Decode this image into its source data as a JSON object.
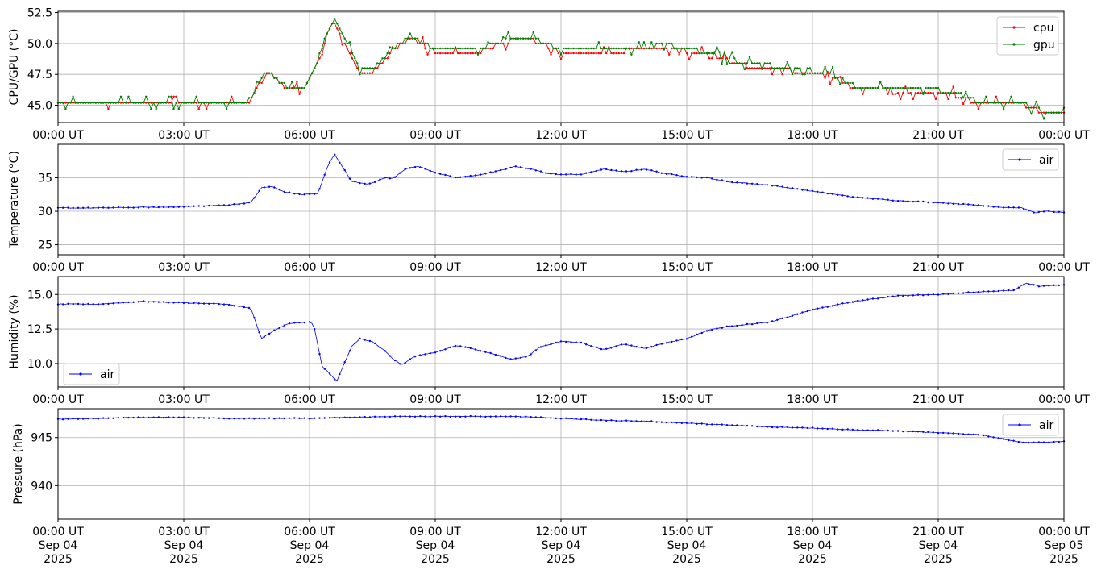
{
  "chart_data": [
    {
      "type": "line",
      "ylabel": "CPU/GPU (°C)",
      "ylim": [
        43.6,
        52.6
      ],
      "yticks": [
        45.0,
        47.5,
        50.0,
        52.5
      ],
      "ytick_labels": [
        "45.0",
        "47.5",
        "50.0",
        "52.5"
      ],
      "xticks": [
        "00:00 UT",
        "03:00 UT",
        "06:00 UT",
        "09:00 UT",
        "12:00 UT",
        "15:00 UT",
        "18:00 UT",
        "21:00 UT",
        "00:00 UT"
      ],
      "grid": true,
      "legend": "top-right",
      "series": [
        {
          "name": "cpu",
          "color": "#ff0000",
          "x_hours": [
            0,
            4.5,
            4.8,
            5.0,
            5.3,
            5.5,
            5.9,
            6.2,
            6.4,
            6.6,
            6.8,
            7.0,
            7.2,
            7.5,
            7.8,
            8.0,
            8.4,
            9.0,
            10.0,
            11.0,
            11.5,
            12.0,
            13.0,
            14.0,
            14.5,
            15.0,
            16.0,
            16.5,
            17.0,
            18.0,
            18.5,
            19.0,
            20.0,
            21.0,
            21.5,
            22.0,
            23.0,
            23.5,
            24.0
          ],
          "values": [
            45.0,
            45.0,
            46.5,
            47.8,
            46.8,
            46.3,
            46.5,
            48.5,
            50.5,
            51.8,
            50.4,
            49.0,
            47.8,
            47.7,
            48.7,
            49.4,
            50.5,
            49.3,
            49.3,
            50.5,
            50.1,
            49.3,
            49.3,
            49.5,
            49.7,
            49.4,
            48.6,
            48.1,
            48.0,
            47.6,
            47.2,
            46.4,
            46.2,
            46.1,
            45.7,
            45.1,
            45.1,
            44.4,
            44.5
          ]
        },
        {
          "name": "gpu",
          "color": "#008000",
          "x_hours": [
            0,
            4.5,
            4.8,
            5.0,
            5.3,
            5.5,
            5.9,
            6.2,
            6.4,
            6.6,
            6.8,
            7.0,
            7.2,
            7.5,
            7.8,
            8.0,
            8.4,
            9.0,
            10.0,
            11.0,
            11.5,
            12.0,
            13.0,
            14.0,
            14.5,
            15.0,
            16.0,
            16.5,
            17.0,
            18.0,
            18.5,
            19.0,
            20.0,
            21.0,
            21.5,
            22.0,
            23.0,
            23.5,
            24.0
          ],
          "values": [
            45.1,
            45.1,
            46.7,
            47.9,
            46.9,
            46.4,
            46.6,
            48.7,
            50.7,
            51.9,
            50.6,
            49.2,
            48.0,
            47.9,
            48.9,
            49.6,
            50.6,
            49.5,
            49.5,
            50.6,
            50.2,
            49.5,
            49.5,
            49.7,
            49.9,
            49.6,
            48.8,
            48.3,
            48.2,
            47.8,
            47.4,
            46.6,
            46.3,
            46.2,
            45.9,
            45.2,
            45.2,
            44.5,
            44.6
          ]
        }
      ]
    },
    {
      "type": "line",
      "ylabel": "Temperature (°C)",
      "ylim": [
        23.5,
        40.0
      ],
      "yticks": [
        25,
        30,
        35
      ],
      "ytick_labels": [
        "25",
        "30",
        "35"
      ],
      "xticks": [
        "00:00 UT",
        "03:00 UT",
        "06:00 UT",
        "09:00 UT",
        "12:00 UT",
        "15:00 UT",
        "18:00 UT",
        "21:00 UT",
        "00:00 UT"
      ],
      "grid": true,
      "legend": "top-right",
      "series": [
        {
          "name": "air",
          "color": "#0000ff",
          "x_hours": [
            0,
            1.0,
            2.0,
            2.5,
            3.0,
            4.0,
            4.6,
            4.85,
            5.1,
            5.4,
            5.8,
            6.2,
            6.45,
            6.6,
            6.8,
            7.0,
            7.4,
            7.8,
            8.0,
            8.3,
            8.6,
            9.0,
            9.5,
            10.0,
            10.5,
            10.9,
            11.3,
            11.7,
            12.0,
            12.5,
            13.0,
            13.5,
            14.0,
            14.5,
            15.0,
            15.5,
            16.0,
            17.0,
            18.0,
            19.0,
            20.0,
            21.0,
            22.0,
            22.5,
            23.0,
            23.3,
            23.6,
            24.0
          ],
          "values": [
            30.5,
            30.5,
            30.6,
            30.6,
            30.7,
            30.9,
            31.3,
            33.5,
            33.7,
            32.9,
            32.5,
            32.6,
            37.0,
            38.5,
            36.5,
            34.5,
            34.0,
            35.0,
            34.9,
            36.4,
            36.7,
            35.8,
            35.0,
            35.4,
            36.0,
            36.7,
            36.3,
            35.6,
            35.5,
            35.5,
            36.3,
            35.9,
            36.3,
            35.6,
            35.2,
            35.0,
            34.4,
            33.9,
            33.0,
            32.1,
            31.6,
            31.3,
            30.9,
            30.6,
            30.5,
            29.8,
            30.0,
            29.8
          ]
        }
      ]
    },
    {
      "type": "line",
      "ylabel": "Humidity (%)",
      "ylim": [
        8.3,
        16.3
      ],
      "yticks": [
        10.0,
        12.5,
        15.0
      ],
      "ytick_labels": [
        "10.0",
        "12.5",
        "15.0"
      ],
      "xticks": [
        "00:00 UT",
        "03:00 UT",
        "06:00 UT",
        "09:00 UT",
        "12:00 UT",
        "15:00 UT",
        "18:00 UT",
        "21:00 UT",
        "00:00 UT"
      ],
      "grid": true,
      "legend": "bottom-left",
      "series": [
        {
          "name": "air",
          "color": "#0000ff",
          "x_hours": [
            0,
            1.0,
            2.0,
            3.0,
            4.0,
            4.6,
            4.85,
            5.1,
            5.5,
            6.0,
            6.1,
            6.3,
            6.5,
            6.65,
            6.8,
            7.0,
            7.2,
            7.5,
            7.8,
            8.0,
            8.2,
            8.5,
            9.0,
            9.5,
            10.0,
            10.5,
            10.8,
            11.2,
            11.5,
            12.0,
            12.5,
            13.0,
            13.5,
            14.0,
            14.5,
            15.0,
            15.5,
            16.0,
            17.0,
            18.0,
            19.0,
            20.0,
            21.0,
            22.0,
            22.8,
            23.1,
            23.4,
            24.0
          ],
          "values": [
            14.3,
            14.3,
            14.5,
            14.4,
            14.3,
            14.0,
            11.8,
            12.3,
            12.9,
            13.0,
            12.8,
            9.8,
            9.2,
            8.7,
            9.8,
            11.2,
            11.8,
            11.6,
            10.9,
            10.3,
            9.9,
            10.5,
            10.8,
            11.3,
            11.0,
            10.6,
            10.3,
            10.5,
            11.2,
            11.6,
            11.5,
            11.0,
            11.4,
            11.1,
            11.5,
            11.8,
            12.4,
            12.7,
            13.0,
            13.9,
            14.5,
            14.9,
            15.0,
            15.2,
            15.3,
            15.8,
            15.6,
            15.7
          ]
        }
      ]
    },
    {
      "type": "line",
      "ylabel": "Pressure (hPa)",
      "ylim": [
        936.5,
        948.0
      ],
      "yticks": [
        940,
        945
      ],
      "ytick_labels": [
        "940",
        "945"
      ],
      "xticks": [
        "00:00 UT",
        "03:00 UT",
        "06:00 UT",
        "09:00 UT",
        "12:00 UT",
        "15:00 UT",
        "18:00 UT",
        "21:00 UT",
        "00:00 UT"
      ],
      "xticks_line2": [
        "Sep 04",
        "Sep 04",
        "Sep 04",
        "Sep 04",
        "Sep 04",
        "Sep 04",
        "Sep 04",
        "Sep 04",
        "Sep 05"
      ],
      "xticks_line3": [
        "2025",
        "2025",
        "2025",
        "2025",
        "2025",
        "2025",
        "2025",
        "2025",
        "2025"
      ],
      "grid": true,
      "legend": "top-right",
      "series": [
        {
          "name": "air",
          "color": "#0000ff",
          "x_hours": [
            0,
            1.0,
            2.0,
            3.0,
            4.0,
            5.0,
            6.0,
            7.0,
            8.0,
            9.0,
            10.0,
            11.0,
            12.0,
            13.0,
            14.0,
            15.0,
            16.0,
            17.0,
            18.0,
            19.0,
            20.0,
            21.0,
            22.0,
            22.5,
            23.0,
            23.5,
            24.0
          ],
          "values": [
            946.9,
            947.0,
            947.1,
            947.1,
            947.0,
            947.0,
            947.0,
            947.1,
            947.2,
            947.2,
            947.2,
            947.2,
            947.0,
            946.8,
            946.7,
            946.5,
            946.3,
            946.1,
            946.0,
            945.8,
            945.7,
            945.5,
            945.3,
            944.9,
            944.5,
            944.5,
            944.6
          ]
        }
      ]
    }
  ]
}
